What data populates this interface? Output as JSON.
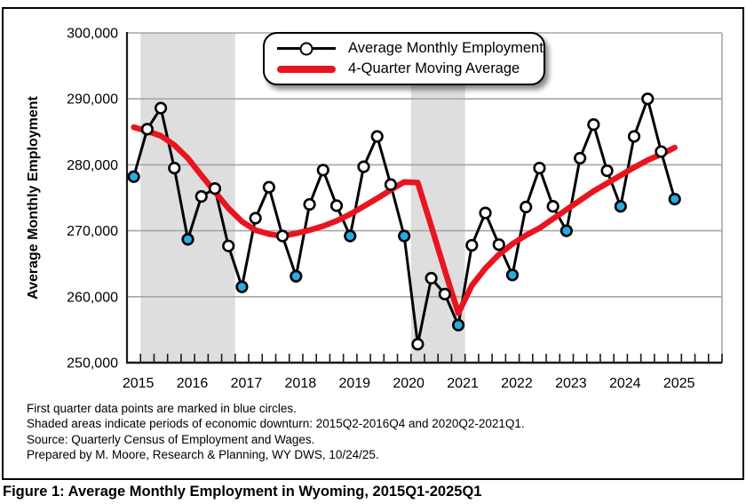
{
  "figure": {
    "caption": "Figure 1: Average Monthly Employment in Wyoming, 2015Q1-2025Q1",
    "footnotes": [
      "First quarter data points are marked in blue circles.",
      "Shaded areas indicate periods of economic downturn: 2015Q2-2016Q4 and 2020Q2-2021Q1.",
      "Source: Quarterly Census of Employment and Wages.",
      "Prepared by M. Moore, Research & Planning, WY DWS, 10/24/25."
    ]
  },
  "legend": {
    "series1": "Average Monthly Employment",
    "series2": "4-Quarter Moving Average"
  },
  "colors": {
    "employment_line": "#000000",
    "marker_fill": "#ffffff",
    "q1_marker_fill": "#29abe2",
    "moving_average": "#e8151f",
    "gridline": "#a6a6a6",
    "shading": "#dedede",
    "axis": "#1a1a1a",
    "text": "#000000"
  },
  "chart_data": {
    "type": "line",
    "title": "",
    "xlabel": "",
    "ylabel": "Average Monthly Employment",
    "ylim": [
      250000,
      300000
    ],
    "ytick_step": 10000,
    "ytick_labels": [
      "250,000",
      "260,000",
      "270,000",
      "280,000",
      "290,000",
      "300,000"
    ],
    "grid": "horizontal",
    "legend_position": "top-center",
    "x": [
      "2015Q1",
      "2015Q2",
      "2015Q3",
      "2015Q4",
      "2016Q1",
      "2016Q2",
      "2016Q3",
      "2016Q4",
      "2017Q1",
      "2017Q2",
      "2017Q3",
      "2017Q4",
      "2018Q1",
      "2018Q2",
      "2018Q3",
      "2018Q4",
      "2019Q1",
      "2019Q2",
      "2019Q3",
      "2019Q4",
      "2020Q1",
      "2020Q2",
      "2020Q3",
      "2020Q4",
      "2021Q1",
      "2021Q2",
      "2021Q3",
      "2021Q4",
      "2022Q1",
      "2022Q2",
      "2022Q3",
      "2022Q4",
      "2023Q1",
      "2023Q2",
      "2023Q3",
      "2023Q4",
      "2024Q1",
      "2024Q2",
      "2024Q3",
      "2024Q4",
      "2025Q1"
    ],
    "year_labels": [
      "2015",
      "2016",
      "2017",
      "2018",
      "2019",
      "2020",
      "2021",
      "2022",
      "2023",
      "2024",
      "2025"
    ],
    "series": [
      {
        "name": "Average Monthly Employment",
        "values": [
          278200,
          285400,
          288600,
          279500,
          268700,
          275200,
          276400,
          267700,
          261500,
          271900,
          276600,
          269200,
          263100,
          274000,
          279200,
          273800,
          269200,
          279700,
          284300,
          277000,
          269200,
          252800,
          262800,
          260400,
          255700,
          267800,
          272700,
          267900,
          263300,
          273600,
          279500,
          273700,
          270000,
          281000,
          286100,
          279100,
          273700,
          284300,
          290000,
          282000,
          274800
        ]
      },
      {
        "name": "4-Quarter Moving Average",
        "values": [
          285700,
          285100,
          284400,
          283000,
          281000,
          278400,
          275900,
          273400,
          271400,
          270100,
          269500,
          269200,
          269600,
          270100,
          270700,
          271500,
          272500,
          273700,
          274900,
          276200,
          277400,
          277300,
          270700,
          264000,
          257500,
          261700,
          264300,
          266400,
          268000,
          269300,
          270400,
          271800,
          273200,
          274600,
          276000,
          277200,
          278400,
          279600,
          280700,
          281600,
          282600
        ]
      }
    ],
    "q1_highlight": "Q1",
    "shaded_periods": [
      {
        "from": "2015Q2",
        "to": "2016Q4"
      },
      {
        "from": "2020Q2",
        "to": "2021Q1"
      }
    ]
  }
}
